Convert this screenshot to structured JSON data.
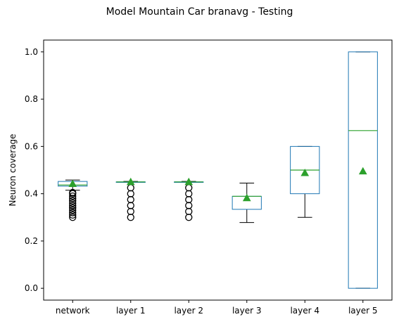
{
  "chart_data": {
    "type": "box",
    "title": "Model Mountain Car branavg - Testing",
    "xlabel": "",
    "ylabel": "Neuron coverage",
    "ylim": [
      -0.05,
      1.05
    ],
    "yticks": [
      0.0,
      0.2,
      0.4,
      0.6,
      0.8,
      1.0
    ],
    "ytick_labels": [
      "0.0",
      "0.2",
      "0.4",
      "0.6",
      "0.8",
      "1.0"
    ],
    "grid": false,
    "legend": "none",
    "categories": [
      "network",
      "layer 1",
      "layer 2",
      "layer 3",
      "layer 4",
      "layer 5"
    ],
    "boxes": [
      {
        "whisker_low": 0.415,
        "q1": 0.432,
        "median": 0.437,
        "q3": 0.452,
        "whisker_high": 0.458,
        "mean": 0.442,
        "outliers": [
          0.405,
          0.4,
          0.39,
          0.38,
          0.37,
          0.36,
          0.35,
          0.34,
          0.33,
          0.32,
          0.31,
          0.3
        ]
      },
      {
        "whisker_low": 0.448,
        "q1": 0.448,
        "median": 0.45,
        "q3": 0.45,
        "whisker_high": 0.452,
        "mean": 0.45,
        "outliers": [
          0.425,
          0.4,
          0.375,
          0.35,
          0.325,
          0.3
        ]
      },
      {
        "whisker_low": 0.448,
        "q1": 0.448,
        "median": 0.45,
        "q3": 0.45,
        "whisker_high": 0.452,
        "mean": 0.45,
        "outliers": [
          0.425,
          0.4,
          0.375,
          0.35,
          0.325,
          0.3
        ]
      },
      {
        "whisker_low": 0.278,
        "q1": 0.334,
        "median": 0.389,
        "q3": 0.389,
        "whisker_high": 0.445,
        "mean": 0.382,
        "outliers": []
      },
      {
        "whisker_low": 0.3,
        "q1": 0.4,
        "median": 0.5,
        "q3": 0.6,
        "whisker_high": 0.6,
        "mean": 0.488,
        "outliers": []
      },
      {
        "whisker_low": 0.0,
        "q1": 0.0,
        "median": 0.667,
        "q3": 1.0,
        "whisker_high": 1.0,
        "mean": 0.495,
        "outliers": []
      }
    ],
    "colors": {
      "box": "#1f77b4",
      "median": "#2ca02c",
      "mean": "#2ca02c",
      "whisker": "#000000",
      "outlier": "#000000",
      "axis": "#000000"
    }
  }
}
